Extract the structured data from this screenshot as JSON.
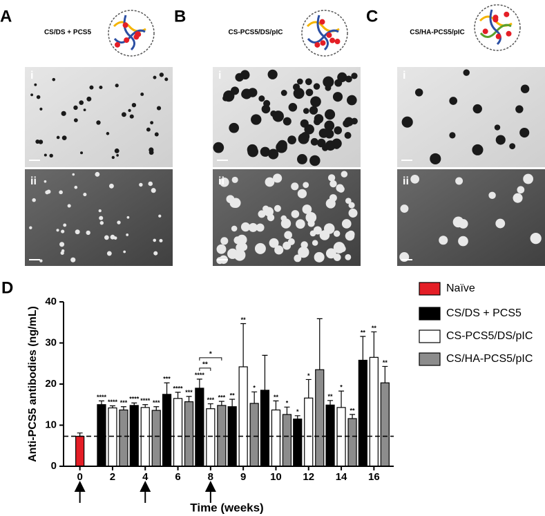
{
  "panels": [
    {
      "label": "A",
      "title": "CS/DS + PCS5",
      "sublabels": [
        "i",
        "ii"
      ]
    },
    {
      "label": "B",
      "title": "CS-PCS5/DS/pIC",
      "sublabels": [
        "i",
        "ii"
      ]
    },
    {
      "label": "C",
      "title": "CS/HA-PCS5/pIC",
      "sublabels": [
        "i",
        "ii"
      ]
    }
  ],
  "chart_data": {
    "type": "bar",
    "panel_label": "D",
    "x_label": "Time (weeks)",
    "y_label": "Anti-PCS5 antibodies (ng/mL)",
    "categories": [
      "0",
      "2",
      "4",
      "6",
      "8",
      "9",
      "10",
      "12",
      "14",
      "16"
    ],
    "ylim": [
      0,
      40
    ],
    "yticks": [
      0,
      10,
      20,
      30,
      40
    ],
    "reference_line": 7.3,
    "arrow_categories": [
      "0",
      "4",
      "8"
    ],
    "series": [
      {
        "name": "Naïve",
        "color": "#e41e26",
        "values": [
          7.3,
          null,
          null,
          null,
          null,
          null,
          null,
          null,
          null,
          null
        ],
        "errors": [
          0.8,
          null,
          null,
          null,
          null,
          null,
          null,
          null,
          null,
          null
        ],
        "stars": [
          null,
          null,
          null,
          null,
          null,
          null,
          null,
          null,
          null,
          null
        ]
      },
      {
        "name": "CS/DS + PCS5",
        "color": "#000000",
        "values": [
          null,
          15.0,
          14.8,
          17.5,
          19.0,
          14.5,
          18.5,
          11.5,
          14.9,
          25.8
        ],
        "errors": [
          null,
          0.9,
          0.6,
          2.8,
          2.2,
          1.8,
          8.5,
          0.8,
          1.1,
          5.8
        ],
        "stars": [
          null,
          "****",
          "****",
          "***",
          "****",
          "**",
          null,
          "*",
          "**",
          "**"
        ]
      },
      {
        "name": "CS-PCS5/DS/pIC",
        "color": "#ffffff",
        "values": [
          null,
          14.2,
          14.3,
          16.5,
          14.0,
          24.2,
          13.7,
          16.6,
          14.3,
          26.5
        ],
        "errors": [
          null,
          0.5,
          0.7,
          1.5,
          1.2,
          10.5,
          2.2,
          4.5,
          4.0,
          6.2
        ],
        "stars": [
          null,
          "****",
          "****",
          "****",
          "***",
          "**",
          "**",
          "*",
          "*",
          "**"
        ]
      },
      {
        "name": "CS/HA-PCS5/pIC",
        "color": "#8c8c8c",
        "values": [
          null,
          13.7,
          13.6,
          15.7,
          14.8,
          15.3,
          12.6,
          23.5,
          11.6,
          20.3
        ],
        "errors": [
          null,
          0.8,
          0.9,
          1.3,
          1.0,
          2.8,
          1.8,
          12.4,
          1.0,
          4.0
        ],
        "stars": [
          null,
          "***",
          "***",
          "***",
          "***",
          "*",
          "*",
          null,
          "**",
          "**"
        ]
      }
    ],
    "comparisons": [
      {
        "category": "8",
        "between": [
          "CS/DS + PCS5",
          "CS-PCS5/DS/pIC"
        ],
        "label": "**"
      },
      {
        "category": "8",
        "between": [
          "CS/DS + PCS5",
          "CS/HA-PCS5/pIC"
        ],
        "label": "*"
      }
    ]
  }
}
